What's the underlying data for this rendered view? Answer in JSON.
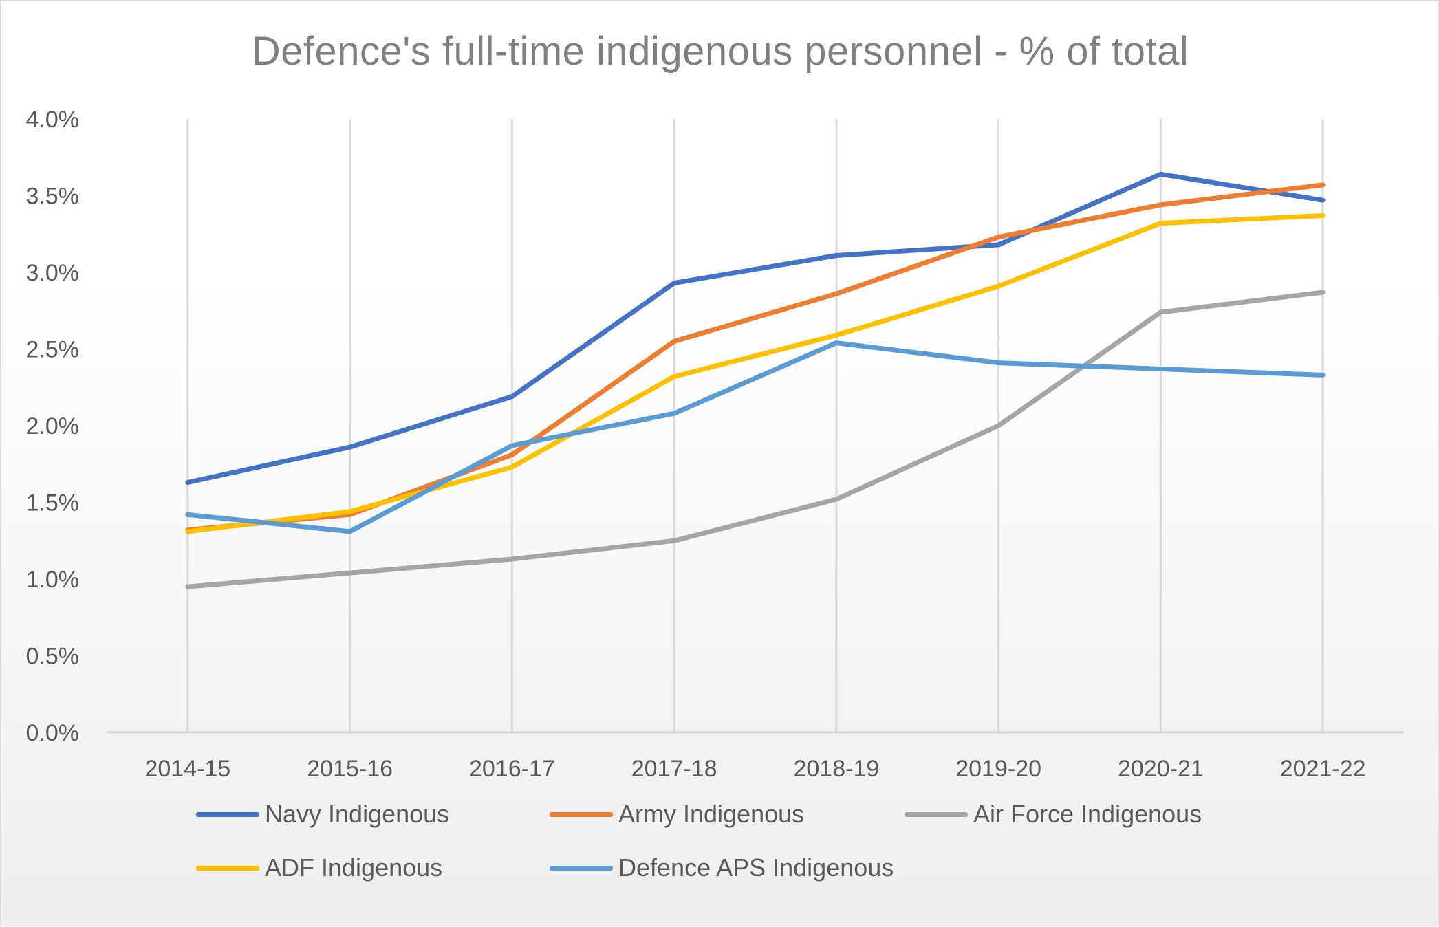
{
  "chart_data": {
    "type": "line",
    "title": "Defence's full-time indigenous personnel - % of total",
    "xlabel": "",
    "ylabel": "",
    "categories": [
      "2014-15",
      "2015-16",
      "2016-17",
      "2017-18",
      "2018-19",
      "2019-20",
      "2020-21",
      "2021-22"
    ],
    "ylim": [
      0,
      4.0
    ],
    "yticks": [
      "0.0%",
      "0.5%",
      "1.0%",
      "1.5%",
      "2.0%",
      "2.5%",
      "3.0%",
      "3.5%",
      "4.0%"
    ],
    "grid": "vertical",
    "legend_position": "bottom",
    "series": [
      {
        "name": "Navy Indigenous",
        "color": "#4472c4",
        "values": [
          1.63,
          1.86,
          2.19,
          2.93,
          3.11,
          3.18,
          3.64,
          3.47
        ]
      },
      {
        "name": "Army Indigenous",
        "color": "#ed7d31",
        "values": [
          1.32,
          1.42,
          1.81,
          2.55,
          2.86,
          3.23,
          3.44,
          3.57
        ]
      },
      {
        "name": "Air Force Indigenous",
        "color": "#a5a5a5",
        "values": [
          0.95,
          1.04,
          1.13,
          1.25,
          1.52,
          2.0,
          2.74,
          2.87
        ]
      },
      {
        "name": "ADF Indigenous",
        "color": "#ffc000",
        "values": [
          1.31,
          1.44,
          1.73,
          2.32,
          2.59,
          2.91,
          3.32,
          3.37
        ]
      },
      {
        "name": "Defence APS Indigenous",
        "color": "#5b9bd5",
        "values": [
          1.42,
          1.31,
          1.87,
          2.08,
          2.54,
          2.41,
          2.37,
          2.33
        ]
      }
    ]
  }
}
